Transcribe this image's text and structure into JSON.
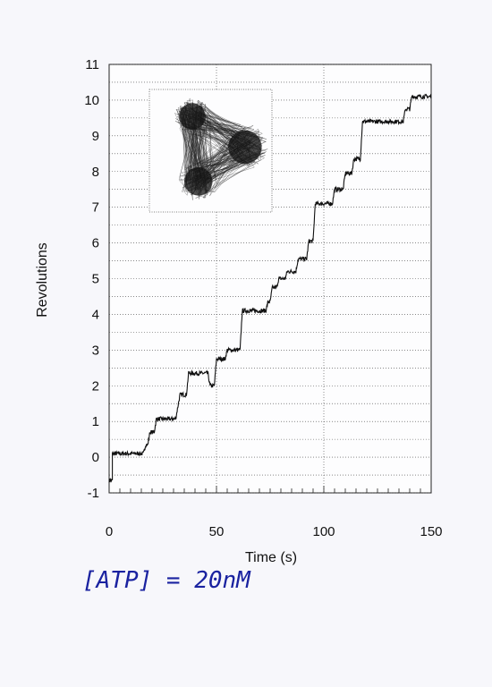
{
  "chart_data": {
    "type": "line",
    "xlabel": "Time (s)",
    "ylabel": "Revolutions",
    "xlim": [
      0,
      150
    ],
    "ylim": [
      -1,
      11
    ],
    "x_ticks": [
      0,
      50,
      100,
      150
    ],
    "y_ticks": [
      -1,
      0,
      1,
      2,
      3,
      4,
      5,
      6,
      7,
      8,
      9,
      10,
      11
    ],
    "grid": "on",
    "series": [
      {
        "x": [
          0,
          1.5,
          1.5,
          16,
          17,
          18,
          19,
          21,
          22,
          31,
          33,
          36,
          37,
          46,
          47,
          49,
          50,
          54,
          55,
          61,
          62,
          73,
          74,
          75,
          76,
          78,
          79,
          82,
          83,
          87,
          88,
          92,
          93,
          95,
          96,
          104,
          105,
          109,
          110,
          113,
          114,
          117,
          118,
          137,
          138,
          140,
          141,
          150
        ],
        "y": [
          -0.65,
          -0.65,
          0.1,
          0.1,
          0.35,
          0.35,
          0.7,
          0.7,
          1.07,
          1.07,
          1.75,
          1.75,
          2.35,
          2.35,
          2.0,
          2.0,
          2.75,
          2.75,
          3.0,
          3.0,
          4.1,
          4.1,
          4.35,
          4.35,
          4.75,
          4.75,
          5.0,
          5.0,
          5.2,
          5.2,
          5.55,
          5.55,
          6.05,
          6.05,
          7.1,
          7.1,
          7.5,
          7.5,
          7.95,
          7.95,
          8.35,
          8.35,
          9.4,
          9.4,
          9.75,
          9.75,
          10.1,
          10.1
        ]
      }
    ],
    "inset": {
      "type": "scatter-trace",
      "clusters": [
        {
          "cx": 0.35,
          "cy": 0.22,
          "r": 0.15
        },
        {
          "cx": 0.78,
          "cy": 0.47,
          "r": 0.19
        },
        {
          "cx": 0.4,
          "cy": 0.75,
          "r": 0.16
        }
      ]
    }
  },
  "note": "[ATP] = 20nM"
}
